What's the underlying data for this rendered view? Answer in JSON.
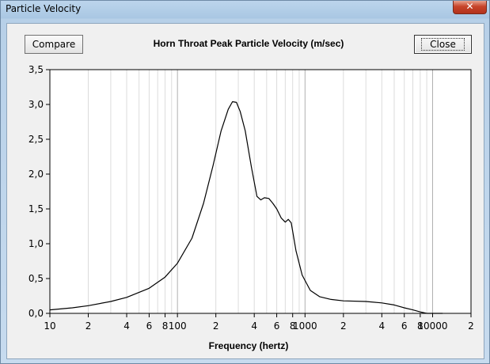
{
  "window": {
    "title": "Particle Velocity",
    "close_glyph": "✕"
  },
  "toolbar": {
    "compare_label": "Compare",
    "close_label": "Close"
  },
  "chart_data": {
    "type": "line",
    "title": "Horn Throat Peak Particle Velocity (m/sec)",
    "xlabel": "Frequency (hertz)",
    "ylabel": "",
    "xscale": "log",
    "xlim": [
      10,
      20000
    ],
    "ylim": [
      0,
      3.5
    ],
    "grid": true,
    "y_ticks": [
      "0,0",
      "0,5",
      "1,0",
      "1,5",
      "2,0",
      "2,5",
      "3,0",
      "3,5"
    ],
    "x_ticks": [
      {
        "v": 10,
        "label": "10"
      },
      {
        "v": 20,
        "label": "2"
      },
      {
        "v": 40,
        "label": "4"
      },
      {
        "v": 60,
        "label": "6"
      },
      {
        "v": 80,
        "label": "8"
      },
      {
        "v": 100,
        "label": "100"
      },
      {
        "v": 200,
        "label": "2"
      },
      {
        "v": 400,
        "label": "4"
      },
      {
        "v": 600,
        "label": "6"
      },
      {
        "v": 800,
        "label": "8"
      },
      {
        "v": 1000,
        "label": "1000"
      },
      {
        "v": 2000,
        "label": "2"
      },
      {
        "v": 4000,
        "label": "4"
      },
      {
        "v": 6000,
        "label": "6"
      },
      {
        "v": 8000,
        "label": "8"
      },
      {
        "v": 10000,
        "label": "10000"
      },
      {
        "v": 20000,
        "label": "2"
      }
    ],
    "series": [
      {
        "x": [
          10,
          15,
          20,
          30,
          40,
          60,
          80,
          100,
          130,
          160,
          190,
          220,
          250,
          270,
          290,
          310,
          340,
          380,
          420,
          450,
          480,
          520,
          560,
          600,
          650,
          700,
          740,
          780,
          850,
          950,
          1100,
          1300,
          1600,
          2000,
          3000,
          4000,
          5000,
          6000,
          7000,
          8000,
          9000,
          10000,
          11000,
          12000
        ],
        "y": [
          0.05,
          0.08,
          0.11,
          0.17,
          0.23,
          0.36,
          0.52,
          0.72,
          1.08,
          1.58,
          2.12,
          2.62,
          2.93,
          3.04,
          3.03,
          2.9,
          2.62,
          2.1,
          1.68,
          1.63,
          1.66,
          1.65,
          1.58,
          1.5,
          1.37,
          1.31,
          1.35,
          1.3,
          0.9,
          0.55,
          0.33,
          0.24,
          0.2,
          0.18,
          0.17,
          0.15,
          0.12,
          0.08,
          0.05,
          0.02,
          0.0,
          0.0,
          0.0,
          0.0
        ]
      }
    ]
  }
}
